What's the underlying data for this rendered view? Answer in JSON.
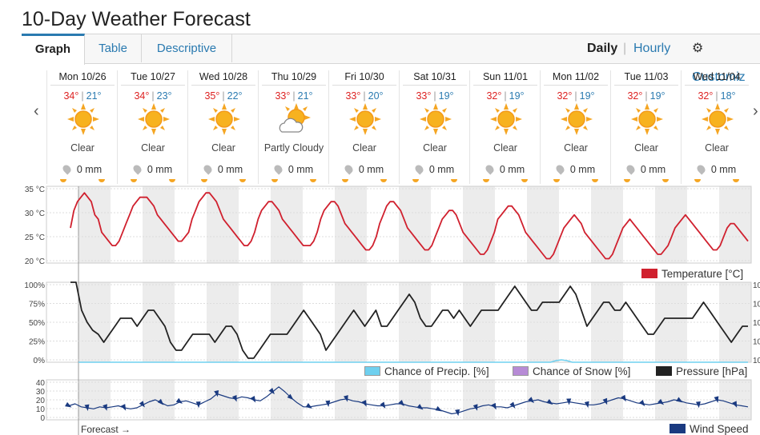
{
  "title": "10-Day Weather Forecast",
  "tabs": [
    {
      "label": "Graph"
    },
    {
      "label": "Table"
    },
    {
      "label": "Descriptive"
    }
  ],
  "view_modes": {
    "daily": "Daily",
    "separator": "|",
    "hourly": "Hourly",
    "customize": "Customiz"
  },
  "nav": {
    "prev": "‹",
    "next": "›"
  },
  "days": [
    {
      "date": "Mon 10/26",
      "high": "34°",
      "low": "21°",
      "condition": "Clear",
      "icon": "sun-icon",
      "precip": "0 mm"
    },
    {
      "date": "Tue 10/27",
      "high": "34°",
      "low": "23°",
      "condition": "Clear",
      "icon": "sun-icon",
      "precip": "0 mm"
    },
    {
      "date": "Wed 10/28",
      "high": "35°",
      "low": "22°",
      "condition": "Clear",
      "icon": "sun-icon",
      "precip": "0 mm"
    },
    {
      "date": "Thu 10/29",
      "high": "33°",
      "low": "21°",
      "condition": "Partly Cloudy",
      "icon": "partly-cloudy-icon",
      "precip": "0 mm"
    },
    {
      "date": "Fri 10/30",
      "high": "33°",
      "low": "20°",
      "condition": "Clear",
      "icon": "sun-icon",
      "precip": "0 mm"
    },
    {
      "date": "Sat 10/31",
      "high": "33°",
      "low": "19°",
      "condition": "Clear",
      "icon": "sun-icon",
      "precip": "0 mm"
    },
    {
      "date": "Sun 11/01",
      "high": "32°",
      "low": "19°",
      "condition": "Clear",
      "icon": "sun-icon",
      "precip": "0 mm"
    },
    {
      "date": "Mon 11/02",
      "high": "32°",
      "low": "19°",
      "condition": "Clear",
      "icon": "sun-icon",
      "precip": "0 mm"
    },
    {
      "date": "Tue 11/03",
      "high": "32°",
      "low": "19°",
      "condition": "Clear",
      "icon": "sun-icon",
      "precip": "0 mm"
    },
    {
      "date": "Wed 11/04",
      "high": "32°",
      "low": "18°",
      "condition": "Clear",
      "icon": "sun-icon",
      "precip": "0 mm"
    }
  ],
  "colors": {
    "temperature": "#d0202e",
    "pressure": "#222222",
    "precip": "#6fd0ef",
    "snow": "#b78bd6",
    "wind": "#1a3a80",
    "accent": "#2a7ab0"
  },
  "chart_data": [
    {
      "type": "line",
      "yticks": [
        "35 °C",
        "30 °C",
        "25 °C",
        "20 °C"
      ],
      "ylim": [
        18,
        35.5
      ],
      "series": [
        {
          "name": "Temperature (°C)",
          "values": [
            26,
            30,
            32,
            33,
            34,
            33,
            32,
            29,
            28,
            25,
            24,
            23,
            22,
            22,
            23,
            25,
            27,
            29,
            31,
            32,
            33,
            33,
            33,
            32,
            31,
            29,
            28,
            27,
            26,
            25,
            24,
            23,
            23,
            24,
            25,
            28,
            30,
            32,
            33,
            34,
            34,
            33,
            32,
            30,
            28,
            27,
            26,
            25,
            24,
            23,
            22,
            22,
            23,
            25,
            28,
            30,
            31,
            32,
            32,
            31,
            30,
            28,
            27,
            26,
            25,
            24,
            23,
            22,
            22,
            22,
            23,
            25,
            28,
            30,
            31,
            32,
            32,
            31,
            29,
            27,
            26,
            25,
            24,
            23,
            22,
            21,
            21,
            22,
            24,
            27,
            29,
            31,
            32,
            32,
            31,
            30,
            28,
            26,
            25,
            24,
            23,
            22,
            21,
            21,
            22,
            24,
            26,
            28,
            29,
            30,
            30,
            29,
            27,
            25,
            24,
            23,
            22,
            21,
            20,
            20,
            21,
            23,
            25,
            28,
            29,
            30,
            31,
            31,
            30,
            29,
            27,
            25,
            24,
            23,
            22,
            21,
            20,
            19,
            19,
            20,
            22,
            24,
            26,
            27,
            28,
            29,
            28,
            27,
            25,
            24,
            23,
            22,
            21,
            20,
            19,
            19,
            20,
            22,
            24,
            26,
            27,
            28,
            27,
            26,
            25,
            24,
            23,
            22,
            21,
            20,
            20,
            21,
            22,
            24,
            26,
            27,
            28,
            29,
            28,
            27,
            26,
            25,
            24,
            23,
            22,
            21,
            21,
            22,
            24,
            26,
            27,
            27,
            26,
            25,
            24,
            23
          ]
        }
      ]
    },
    {
      "type": "line",
      "yticks": [
        "100%",
        "75%",
        "50%",
        "25%",
        "0%"
      ],
      "right_ticks": [
        "10",
        "10",
        "10",
        "10",
        "10"
      ],
      "ylim": [
        0,
        100
      ],
      "series": [
        {
          "name": "Pressure (hPa)",
          "values": [
            100,
            100,
            65,
            50,
            40,
            35,
            25,
            35,
            45,
            55,
            55,
            55,
            45,
            55,
            65,
            65,
            55,
            45,
            25,
            15,
            15,
            25,
            35,
            35,
            35,
            35,
            25,
            35,
            45,
            45,
            35,
            15,
            5,
            5,
            15,
            25,
            35,
            35,
            35,
            35,
            45,
            55,
            65,
            55,
            45,
            35,
            15,
            25,
            35,
            45,
            55,
            65,
            55,
            45,
            55,
            65,
            45,
            45,
            55,
            65,
            75,
            85,
            75,
            55,
            45,
            45,
            55,
            65,
            65,
            55,
            65,
            55,
            45,
            55,
            65,
            65,
            65,
            65,
            75,
            85,
            95,
            85,
            75,
            65,
            65,
            75,
            75,
            75,
            75,
            85,
            95,
            85,
            65,
            45,
            55,
            65,
            75,
            75,
            65,
            65,
            75,
            65,
            55,
            45,
            35,
            35,
            45,
            55,
            55,
            55,
            55,
            55,
            55,
            65,
            75,
            65,
            55,
            45,
            35,
            25,
            35,
            45,
            45
          ]
        },
        {
          "name": "Chance of Precip. (%)",
          "values": [
            0,
            0,
            0,
            0,
            0,
            0,
            0,
            0,
            0,
            0,
            0,
            0,
            0,
            0,
            0,
            0,
            0,
            0,
            0,
            0,
            0,
            0,
            0,
            0,
            0,
            0,
            0,
            0,
            0,
            0,
            0,
            0,
            0,
            0,
            0,
            0,
            0,
            0,
            0,
            0,
            0,
            0,
            0,
            0,
            0,
            0,
            0,
            0,
            0,
            0,
            0,
            0,
            0,
            0,
            0,
            0,
            0,
            0,
            0,
            0,
            0,
            0,
            0,
            0,
            0,
            0,
            0,
            0,
            0,
            0,
            0,
            0,
            0,
            0,
            0,
            0,
            0,
            0,
            0,
            0,
            0,
            0,
            0,
            0,
            0,
            0,
            0,
            2,
            3,
            2,
            0,
            0,
            0,
            0,
            0,
            0,
            0,
            0,
            0,
            0,
            0,
            0,
            0,
            0,
            0,
            0,
            0,
            0,
            0,
            0,
            0,
            0,
            0,
            0,
            0,
            0,
            0,
            0,
            0,
            0,
            0,
            0,
            0
          ]
        },
        {
          "name": "Chance of Snow (%)",
          "values": []
        }
      ]
    },
    {
      "type": "line",
      "yticks": [
        "40",
        "30",
        "20",
        "10",
        "0"
      ],
      "ylim": [
        0,
        40
      ],
      "series": [
        {
          "name": "Wind Speed",
          "values": [
            14,
            16,
            13,
            12,
            11,
            13,
            12,
            13,
            14,
            12,
            11,
            12,
            15,
            18,
            20,
            17,
            14,
            15,
            18,
            19,
            17,
            15,
            18,
            21,
            26,
            24,
            22,
            21,
            23,
            22,
            20,
            19,
            23,
            28,
            33,
            28,
            22,
            17,
            13,
            13,
            14,
            15,
            16,
            18,
            20,
            21,
            19,
            18,
            16,
            15,
            14,
            14,
            15,
            16,
            16,
            14,
            13,
            12,
            12,
            11,
            10,
            8,
            6,
            7,
            9,
            11,
            12,
            14,
            15,
            13,
            13,
            12,
            14,
            16,
            18,
            19,
            20,
            18,
            17,
            16,
            17,
            18,
            17,
            16,
            15,
            15,
            16,
            18,
            20,
            22,
            21,
            19,
            17,
            16,
            15,
            16,
            17,
            18,
            20,
            19,
            17,
            16,
            15,
            16,
            18,
            20,
            19,
            17,
            15,
            14,
            13
          ]
        }
      ]
    }
  ],
  "legend": {
    "temperature": "Temperature [°C]",
    "precip": "Chance of Precip. [%]",
    "snow": "Chance of Snow [%]",
    "pressure": "Pressure [hPa]",
    "wind": "Wind Speed"
  },
  "forecast_marker": "Forecast →"
}
